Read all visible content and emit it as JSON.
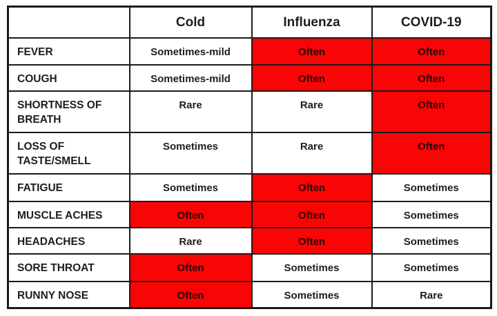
{
  "colors": {
    "highlight": "#fa0505",
    "text": "#1d1d1d",
    "hl_text": "#270606",
    "border": "#1a1a1a",
    "page_bg": "#ffffff"
  },
  "chart_data": {
    "type": "table",
    "columns": [
      "",
      "Cold",
      "Influenza",
      "COVID-19"
    ],
    "highlight_color": "#fa0505",
    "rows": [
      {
        "symptom": "FEVER",
        "cells": [
          {
            "text": "Sometimes-mild",
            "highlight": false
          },
          {
            "text": "Often",
            "highlight": true
          },
          {
            "text": "Often",
            "highlight": true
          }
        ]
      },
      {
        "symptom": "COUGH",
        "cells": [
          {
            "text": "Sometimes-mild",
            "highlight": false
          },
          {
            "text": "Often",
            "highlight": true
          },
          {
            "text": "Often",
            "highlight": true
          }
        ]
      },
      {
        "symptom": "SHORTNESS OF BREATH",
        "cells": [
          {
            "text": "Rare",
            "highlight": false
          },
          {
            "text": "Rare",
            "highlight": false
          },
          {
            "text": "Often",
            "highlight": true
          }
        ]
      },
      {
        "symptom": "LOSS OF TASTE/SMELL",
        "cells": [
          {
            "text": "Sometimes",
            "highlight": false
          },
          {
            "text": "Rare",
            "highlight": false
          },
          {
            "text": "Often",
            "highlight": true
          }
        ]
      },
      {
        "symptom": "FATIGUE",
        "cells": [
          {
            "text": "Sometimes",
            "highlight": false
          },
          {
            "text": "Often",
            "highlight": true
          },
          {
            "text": "Sometimes",
            "highlight": false
          }
        ]
      },
      {
        "symptom": "MUSCLE ACHES",
        "cells": [
          {
            "text": "Often",
            "highlight": true
          },
          {
            "text": "Often",
            "highlight": true
          },
          {
            "text": "Sometimes",
            "highlight": false
          }
        ]
      },
      {
        "symptom": "HEADACHES",
        "cells": [
          {
            "text": "Rare",
            "highlight": false
          },
          {
            "text": "Often",
            "highlight": true
          },
          {
            "text": "Sometimes",
            "highlight": false
          }
        ]
      },
      {
        "symptom": "SORE THROAT",
        "cells": [
          {
            "text": "Often",
            "highlight": true
          },
          {
            "text": "Sometimes",
            "highlight": false
          },
          {
            "text": "Sometimes",
            "highlight": false
          }
        ]
      },
      {
        "symptom": "RUNNY NOSE",
        "cells": [
          {
            "text": "Often",
            "highlight": true
          },
          {
            "text": "Sometimes",
            "highlight": false
          },
          {
            "text": "Rare",
            "highlight": false
          }
        ]
      }
    ]
  }
}
